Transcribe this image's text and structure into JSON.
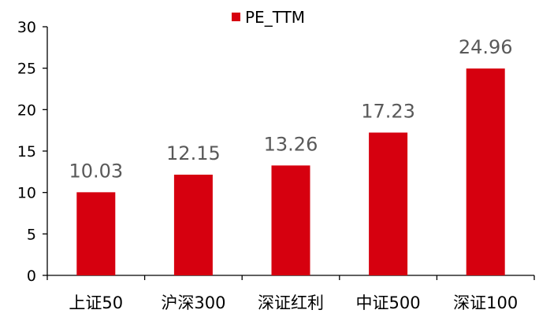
{
  "chart_data": {
    "type": "bar",
    "categories": [
      "上证50",
      "沪深300",
      "深证红利",
      "中证500",
      "深证100"
    ],
    "series": [
      {
        "name": "PE_TTM",
        "values": [
          10.03,
          12.15,
          13.26,
          17.23,
          24.96
        ],
        "data_labels": [
          "10.03",
          "12.15",
          "13.26",
          "17.23",
          "24.96"
        ],
        "color": "#D6000F"
      }
    ],
    "yticks": [
      0,
      5,
      10,
      15,
      20,
      25,
      30
    ],
    "ylim": [
      0,
      30
    ],
    "grid": false,
    "legend": "top-center",
    "title": "",
    "xlabel": "",
    "ylabel": ""
  }
}
